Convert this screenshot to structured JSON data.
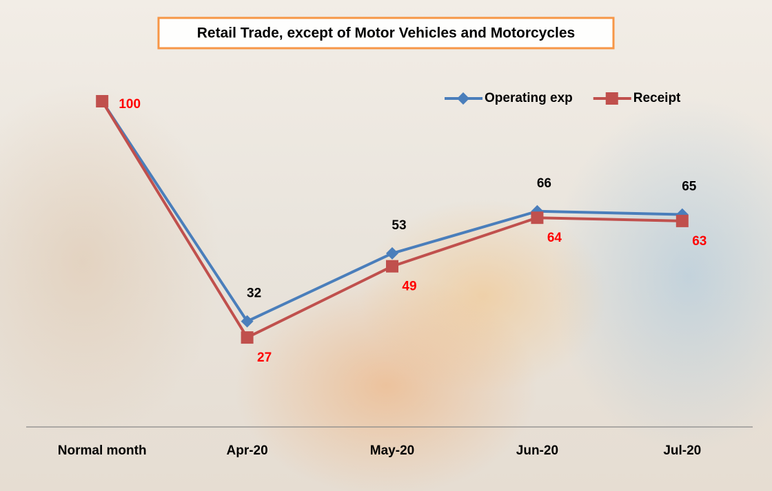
{
  "chart_data": {
    "type": "line",
    "title": "Retail Trade, except of Motor Vehicles and Motorcycles",
    "categories": [
      "Normal month",
      "Apr-20",
      "May-20",
      "Jun-20",
      "Jul-20"
    ],
    "series": [
      {
        "name": "Operating exp",
        "color": "#4a7ebb",
        "label_color": "#000000",
        "marker": "diamond",
        "values": [
          100,
          32,
          53,
          66,
          65
        ],
        "value_labels": [
          null,
          "32",
          "53",
          "66",
          "65"
        ]
      },
      {
        "name": "Receipt",
        "color": "#c0504d",
        "label_color": "#ff0000",
        "marker": "square",
        "values": [
          100,
          27,
          49,
          64,
          63
        ]
      }
    ],
    "ylim": [
      0,
      100
    ],
    "legend": "top-right"
  }
}
